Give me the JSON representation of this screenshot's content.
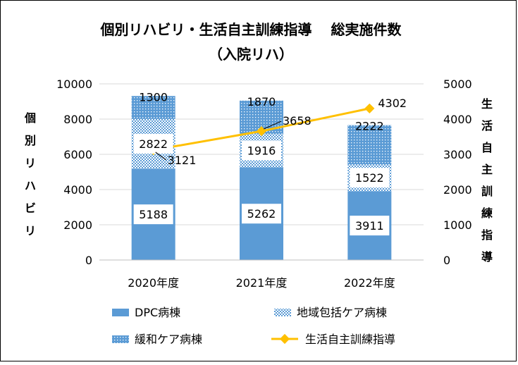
{
  "chart_data": {
    "type": "bar",
    "title": "個別リハビリ・生活自主訓練指導　 総実施件数",
    "subtitle": "（入院リハ）",
    "ylabel": "個別リハビリ",
    "y2label": "生活自主訓練指導",
    "categories": [
      "2020年度",
      "2021年度",
      "2022年度"
    ],
    "ylim": [
      0,
      10000
    ],
    "y2lim": [
      0,
      5000
    ],
    "yticks": [
      "0",
      "2000",
      "4000",
      "6000",
      "8000",
      "10000"
    ],
    "y2ticks": [
      "0",
      "1000",
      "2000",
      "3000",
      "4000",
      "5000"
    ],
    "grid": true,
    "legend_position": "bottom",
    "series": [
      {
        "name": "DPC病棟",
        "kind": "bar",
        "axis": "left",
        "values": [
          5188,
          5262,
          3911
        ],
        "color": "#5B9BD5",
        "pattern": "solid"
      },
      {
        "name": "地域包括ケア病棟",
        "kind": "bar",
        "axis": "left",
        "values": [
          2822,
          1916,
          1522
        ],
        "color": "#5B9BD5",
        "pattern": "checker"
      },
      {
        "name": "緩和ケア病棟",
        "kind": "bar",
        "axis": "left",
        "values": [
          1300,
          1870,
          2222
        ],
        "color": "#5B9BD5",
        "pattern": "dots"
      },
      {
        "name": "生活自主訓練指導",
        "kind": "line",
        "axis": "right",
        "values": [
          3121,
          3658,
          4302
        ],
        "color": "#FFC000"
      }
    ]
  }
}
